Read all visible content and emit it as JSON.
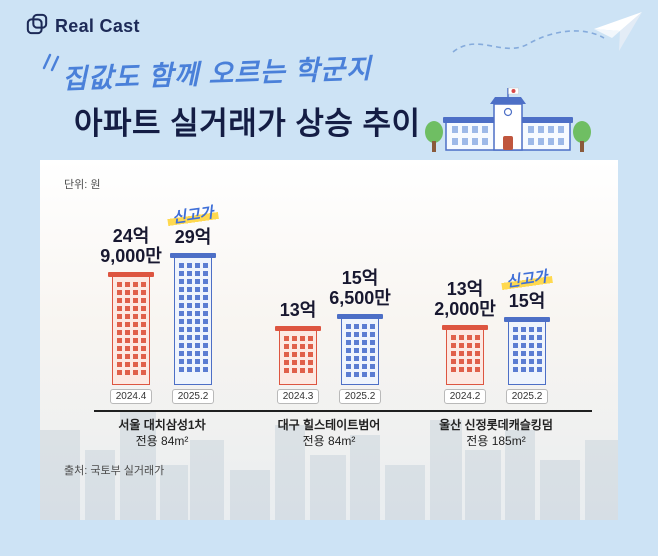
{
  "header": {
    "brand": "Real Cast",
    "logo_icon": "overlapping-frames-icon",
    "plane_icon": "paper-plane-icon"
  },
  "title": {
    "handwritten": "집값도 함께 오르는 학군지",
    "main": "아파트 실거래가 상승 추이",
    "school_icon": "school-illustration"
  },
  "colors": {
    "background": "#cde3f5",
    "title_navy": "#141d44",
    "handwritten_blue": "#4a80d9",
    "bar_red": "#dd5540",
    "bar_blue": "#4d6fc6",
    "highlight_yellow": "#ffd94f"
  },
  "chart_data": {
    "type": "bar",
    "title": "아파트 실거래가 상승 추이",
    "subtitle": "집값도 함께 오르는 학군지",
    "unit_label": "단위: 원",
    "source": "출처: 국토부 실거래가",
    "new_high_label": "신고가",
    "value_unit": "억원",
    "groups": [
      {
        "category": "서울 대치삼성1차",
        "area": "전용 84m²",
        "bars": [
          {
            "period": "2024.4",
            "price_label_lines": [
              "24억",
              "9,000만"
            ],
            "value_eok": 24.9,
            "series": "before",
            "new_high": false
          },
          {
            "period": "2025.2",
            "price_label_lines": [
              "29억"
            ],
            "value_eok": 29,
            "series": "after",
            "new_high": true
          }
        ]
      },
      {
        "category": "대구 힐스테이트범어",
        "area": "전용 84m²",
        "bars": [
          {
            "period": "2024.3",
            "price_label_lines": [
              "13억"
            ],
            "value_eok": 13,
            "series": "before",
            "new_high": false
          },
          {
            "period": "2025.2",
            "price_label_lines": [
              "15억",
              "6,500만"
            ],
            "value_eok": 15.65,
            "series": "after",
            "new_high": false
          }
        ]
      },
      {
        "category": "울산 신정롯데캐슬킹덤",
        "area": "전용 185m²",
        "bars": [
          {
            "period": "2024.2",
            "price_label_lines": [
              "13억",
              "2,000만"
            ],
            "value_eok": 13.2,
            "series": "before",
            "new_high": false
          },
          {
            "period": "2025.2",
            "price_label_lines": [
              "15억"
            ],
            "value_eok": 15,
            "series": "after",
            "new_high": true
          }
        ]
      }
    ]
  }
}
